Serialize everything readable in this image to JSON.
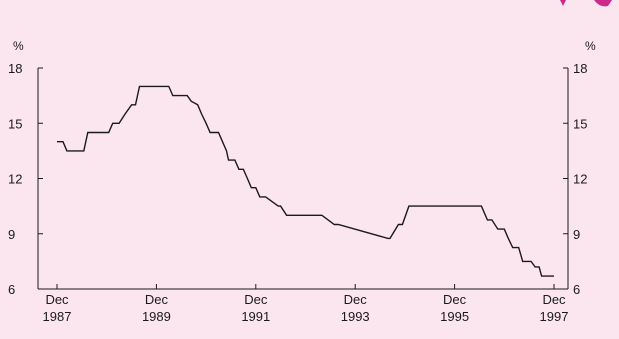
{
  "chart_data": {
    "type": "line",
    "title": "",
    "xlabel": "",
    "ylabel": "%",
    "y_unit_left": "%",
    "y_unit_right": "%",
    "ylim": [
      6,
      18
    ],
    "y_ticks": [
      6,
      9,
      12,
      15,
      18
    ],
    "xlim": [
      1987.92,
      1997.92
    ],
    "x_ticks": [
      {
        "x": 1987.92,
        "month": "Dec",
        "year": "1987"
      },
      {
        "x": 1989.92,
        "month": "Dec",
        "year": "1989"
      },
      {
        "x": 1991.92,
        "month": "Dec",
        "year": "1991"
      },
      {
        "x": 1993.92,
        "month": "Dec",
        "year": "1993"
      },
      {
        "x": 1995.92,
        "month": "Dec",
        "year": "1995"
      },
      {
        "x": 1997.92,
        "month": "Dec",
        "year": "1997"
      }
    ],
    "grid": false,
    "line_color": "#1a1a1a",
    "background_color": "#fbe6ef",
    "accent_color": "#cc2a8a",
    "series": [
      {
        "x": [
          1987.92,
          1988.04,
          1988.12,
          1988.46,
          1988.54,
          1988.96,
          1989.04,
          1989.17,
          1989.29,
          1989.42,
          1989.5,
          1989.58,
          1989.67,
          1990.17,
          1990.25,
          1990.54,
          1990.62,
          1990.75,
          1990.83,
          1990.92,
          1991.0,
          1991.08,
          1991.17,
          1991.25,
          1991.33,
          1991.37,
          1991.5,
          1991.58,
          1991.67,
          1991.75,
          1991.83,
          1991.92,
          1992.0,
          1992.12,
          1992.37,
          1992.42,
          1992.54,
          1992.62,
          1993.17,
          1993.25,
          1993.5,
          1993.58,
          1994.58,
          1994.62,
          1994.79,
          1994.87,
          1995.0,
          1996.38,
          1996.46,
          1996.58,
          1996.67,
          1996.79,
          1996.92,
          1997.0,
          1997.09,
          1997.21,
          1997.29,
          1997.46,
          1997.54,
          1997.62,
          1997.67,
          1997.92
        ],
        "values": [
          14.0,
          14.0,
          13.5,
          13.5,
          14.5,
          14.5,
          15.0,
          15.0,
          15.5,
          16.0,
          16.0,
          17.0,
          17.0,
          17.0,
          16.5,
          16.5,
          16.2,
          16.0,
          15.5,
          15.0,
          14.5,
          14.5,
          14.5,
          14.0,
          13.5,
          13.0,
          13.0,
          12.5,
          12.5,
          12.0,
          11.5,
          11.5,
          11.0,
          11.0,
          10.5,
          10.5,
          10.0,
          10.0,
          10.0,
          10.0,
          9.5,
          9.5,
          8.75,
          8.75,
          9.5,
          9.5,
          10.5,
          10.5,
          10.5,
          9.75,
          9.75,
          9.25,
          9.25,
          8.75,
          8.25,
          8.25,
          7.5,
          7.5,
          7.2,
          7.2,
          6.7,
          6.7
        ]
      }
    ]
  }
}
